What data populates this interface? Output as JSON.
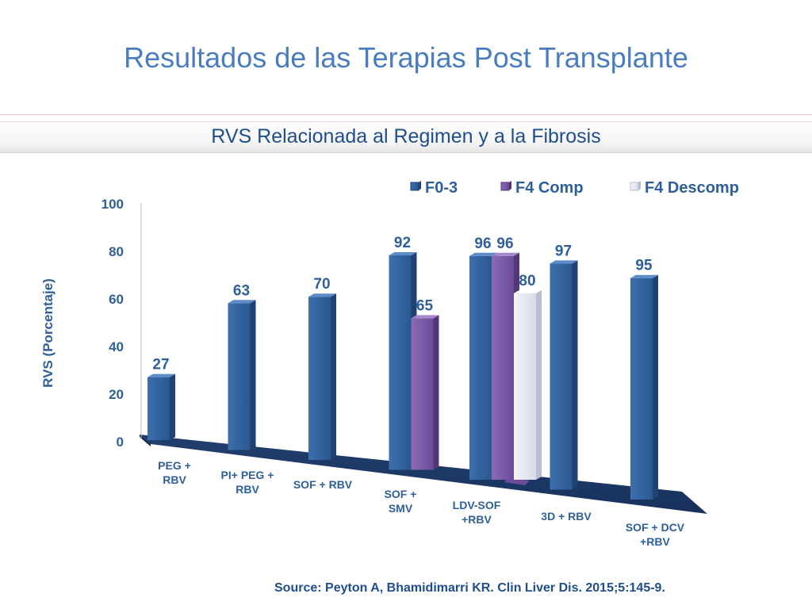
{
  "slide": {
    "title": "Resultados de las Terapias Post Transplante",
    "subtitle": "RVS Relacionada al Regimen y a la Fibrosis",
    "source": "Source:  Peyton A, Bhamidimarri KR. Clin Liver Dis. 2015;5:145-9."
  },
  "chart_data": {
    "type": "bar",
    "ylabel": "RVS  (Porcentaje)",
    "ylim": [
      0,
      100
    ],
    "yticks": [
      "0",
      "20",
      "40",
      "60",
      "80",
      "100"
    ],
    "categories": [
      [
        "PEG +",
        "RBV"
      ],
      [
        "PI+ PEG +",
        "RBV"
      ],
      [
        "SOF + RBV"
      ],
      [
        "SOF +",
        "SMV"
      ],
      [
        "LDV-SOF",
        "+RBV"
      ],
      [
        "3D + RBV"
      ],
      [
        "SOF + DCV",
        "+RBV"
      ]
    ],
    "series": [
      {
        "name": "F0-3",
        "color": "#2f5f9a",
        "values": [
          27,
          63,
          70,
          92,
          96,
          97,
          95
        ]
      },
      {
        "name": "F4 Comp",
        "color": "#7a5aa6",
        "values": [
          null,
          null,
          null,
          65,
          96,
          null,
          null
        ]
      },
      {
        "name": "F4 Descomp",
        "color": "#e7eaf3",
        "values": [
          null,
          null,
          null,
          null,
          80,
          null,
          null
        ]
      }
    ],
    "legend_position": "top-right",
    "grid": false
  }
}
